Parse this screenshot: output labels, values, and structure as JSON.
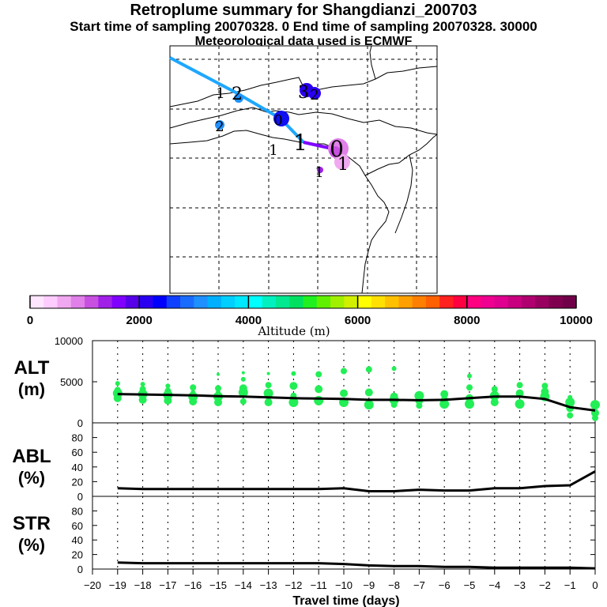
{
  "header": {
    "title": "Retroplume summary for Shangdianzi_200703",
    "sampling_line": "Start time of sampling 20070328.    0     End time of sampling 20070328. 30000",
    "met_line": "Meteorological data used is ECMWF"
  },
  "colorbar": {
    "label": "Altitude (m)",
    "tick_labels": [
      "0",
      "2000",
      "4000",
      "6000",
      "8000",
      "10000"
    ],
    "colors": [
      "#ffe6ff",
      "#ffccff",
      "#f0a8f0",
      "#e080e8",
      "#c850e0",
      "#a020e8",
      "#8000ff",
      "#5500e8",
      "#2a00f0",
      "#0000ff",
      "#1040ff",
      "#1a6cff",
      "#1e90ff",
      "#00b0ff",
      "#00cfff",
      "#00e8ff",
      "#00ffff",
      "#00f0c0",
      "#00e890",
      "#00e060",
      "#20f020",
      "#60f000",
      "#a0f000",
      "#d0f000",
      "#ffff00",
      "#ffe000",
      "#ffc000",
      "#ffa000",
      "#ff8000",
      "#ff6000",
      "#ff2020",
      "#ff0040",
      "#ff0080",
      "#f00090",
      "#e00090",
      "#c80080",
      "#b00070",
      "#980060",
      "#800050",
      "#700048"
    ]
  },
  "map": {
    "labels": [
      "1",
      "2",
      "3",
      "2",
      "2",
      "0",
      "1",
      "1",
      "0",
      "1",
      "1"
    ]
  },
  "chart_data": [
    {
      "type": "scatter",
      "panel": "ALT",
      "ylabel": "ALT\n(m)",
      "ylim": [
        0,
        10000
      ],
      "yticks": [
        0,
        5000,
        10000
      ],
      "xlim": [
        -20,
        0
      ],
      "median_line": {
        "x": [
          -19,
          -18,
          -17,
          -16,
          -15,
          -14,
          -13,
          -12,
          -11,
          -10,
          -9,
          -8,
          -7,
          -6,
          -5,
          -4,
          -3,
          -2,
          -1,
          0
        ],
        "y": [
          3500,
          3450,
          3400,
          3350,
          3250,
          3200,
          3100,
          3000,
          2950,
          2900,
          2800,
          2800,
          2750,
          2800,
          3000,
          3200,
          3200,
          2900,
          1900,
          1500
        ]
      },
      "points": [
        {
          "x": -19,
          "y": [
            3600,
            3000,
            4000,
            4800
          ]
        },
        {
          "x": -18,
          "y": [
            3500,
            2800,
            4100,
            4700
          ]
        },
        {
          "x": -17,
          "y": [
            3400,
            2700,
            3900,
            4500
          ]
        },
        {
          "x": -16,
          "y": [
            3200,
            2600,
            4300,
            3700
          ]
        },
        {
          "x": -15,
          "y": [
            3200,
            2500,
            4200,
            3700,
            5900
          ]
        },
        {
          "x": -14,
          "y": [
            3700,
            4200,
            2600,
            5300,
            6100
          ]
        },
        {
          "x": -13,
          "y": [
            3600,
            2500,
            4600,
            3000,
            6000
          ]
        },
        {
          "x": -12,
          "y": [
            2500,
            4500,
            3300,
            6000
          ]
        },
        {
          "x": -11,
          "y": [
            2700,
            4100,
            5900
          ]
        },
        {
          "x": -10,
          "y": [
            2500,
            3600,
            6300
          ]
        },
        {
          "x": -9,
          "y": [
            2200,
            3700,
            6500
          ]
        },
        {
          "x": -8,
          "y": [
            2800,
            3200,
            2200,
            6600
          ]
        },
        {
          "x": -7,
          "y": [
            3300,
            2700,
            2100
          ]
        },
        {
          "x": -6,
          "y": [
            2300,
            3500,
            2900
          ]
        },
        {
          "x": -5,
          "y": [
            2300,
            3000,
            4300,
            5700
          ]
        },
        {
          "x": -4,
          "y": [
            3300,
            2500,
            4100
          ]
        },
        {
          "x": -3,
          "y": [
            2300,
            3600,
            4600
          ]
        },
        {
          "x": -2,
          "y": [
            3200,
            3800,
            4500
          ]
        },
        {
          "x": -1,
          "y": [
            2500,
            1800,
            900,
            3100
          ]
        },
        {
          "x": 0,
          "y": [
            2200,
            1200,
            600
          ]
        }
      ]
    },
    {
      "type": "line",
      "panel": "ABL",
      "ylabel": "ABL\n(%)",
      "ylim": [
        0,
        100
      ],
      "yticks": [
        0,
        20,
        40,
        60,
        80
      ],
      "xlim": [
        -20,
        0
      ],
      "x": [
        -19,
        -18,
        -17,
        -16,
        -15,
        -14,
        -13,
        -12,
        -11,
        -10,
        -9,
        -8,
        -7,
        -6,
        -5,
        -4,
        -3,
        -2,
        -1,
        0
      ],
      "y": [
        11,
        10,
        10,
        10,
        10,
        10,
        10,
        10,
        10,
        11,
        7,
        7,
        9,
        8,
        8,
        11,
        11,
        14,
        15,
        34
      ]
    },
    {
      "type": "line",
      "panel": "STR",
      "ylabel": "STR\n(%)",
      "ylim": [
        0,
        100
      ],
      "yticks": [
        0,
        20,
        40,
        60,
        80
      ],
      "xlim": [
        -20,
        0
      ],
      "x": [
        -19,
        -18,
        -17,
        -16,
        -15,
        -14,
        -13,
        -12,
        -11,
        -10,
        -9,
        -8,
        -7,
        -6,
        -5,
        -4,
        -3,
        -2,
        -1,
        0
      ],
      "y": [
        9,
        8,
        8,
        8,
        8,
        8,
        8,
        8,
        8,
        7,
        5,
        4,
        4,
        3,
        3,
        2,
        2,
        2,
        2,
        1
      ]
    }
  ],
  "xaxis": {
    "label": "Travel time (days)",
    "ticks": [
      -20,
      -19,
      -18,
      -17,
      -16,
      -15,
      -14,
      -13,
      -12,
      -11,
      -10,
      -9,
      -8,
      -7,
      -6,
      -5,
      -4,
      -3,
      -2,
      -1,
      0
    ]
  }
}
